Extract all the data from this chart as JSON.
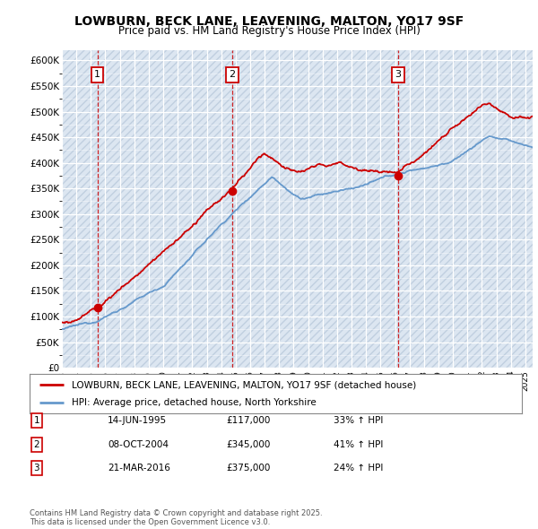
{
  "title": "LOWBURN, BECK LANE, LEAVENING, MALTON, YO17 9SF",
  "subtitle": "Price paid vs. HM Land Registry's House Price Index (HPI)",
  "sale_prices": [
    117000,
    345000,
    375000
  ],
  "sale_labels": [
    "1",
    "2",
    "3"
  ],
  "sale_hpi_pct": [
    "33% ↑ HPI",
    "41% ↑ HPI",
    "24% ↑ HPI"
  ],
  "sale_date_strs": [
    "14-JUN-1995",
    "08-OCT-2004",
    "21-MAR-2016"
  ],
  "sale_price_strs": [
    "£117,000",
    "£345,000",
    "£375,000"
  ],
  "sale_year_nums": [
    1995.45,
    2004.77,
    2016.22
  ],
  "legend_entries": [
    "LOWBURN, BECK LANE, LEAVENING, MALTON, YO17 9SF (detached house)",
    "HPI: Average price, detached house, North Yorkshire"
  ],
  "price_line_color": "#cc0000",
  "hpi_line_color": "#6699cc",
  "ylim": [
    0,
    620000
  ],
  "yticks": [
    0,
    50000,
    100000,
    150000,
    200000,
    250000,
    300000,
    350000,
    400000,
    450000,
    500000,
    550000,
    600000
  ],
  "background_color": "#dce6f1",
  "footer": "Contains HM Land Registry data © Crown copyright and database right 2025.\nThis data is licensed under the Open Government Licence v3.0.",
  "xmin": 1993,
  "xmax": 2025.5
}
